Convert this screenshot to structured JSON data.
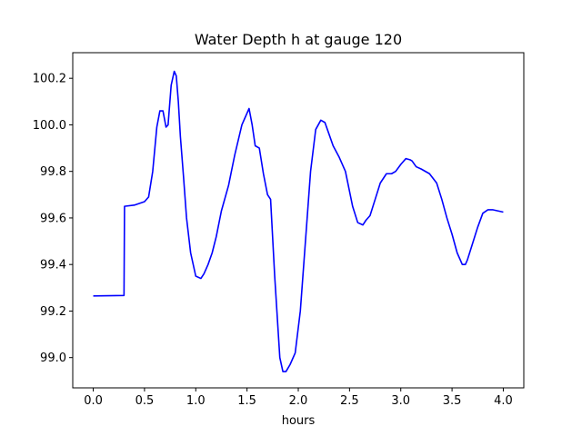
{
  "chart_data": {
    "type": "line",
    "title": "Water Depth h at gauge 120",
    "xlabel": "hours",
    "ylabel": "",
    "xlim": [
      -0.2,
      4.2
    ],
    "ylim": [
      98.87,
      100.31
    ],
    "grid": false,
    "xticks": [
      0.0,
      0.5,
      1.0,
      1.5,
      2.0,
      2.5,
      3.0,
      3.5,
      4.0
    ],
    "xtick_labels": [
      "0.0",
      "0.5",
      "1.0",
      "1.5",
      "2.0",
      "2.5",
      "3.0",
      "3.5",
      "4.0"
    ],
    "yticks": [
      99.0,
      99.2,
      99.4,
      99.6,
      99.8,
      100.0,
      100.2
    ],
    "ytick_labels": [
      "99.0",
      "99.2",
      "99.4",
      "99.6",
      "99.8",
      "100.0",
      "100.2"
    ],
    "series": [
      {
        "color": "#0000ff",
        "x": [
          0.0,
          0.3,
          0.305,
          0.4,
          0.5,
          0.54,
          0.58,
          0.62,
          0.65,
          0.68,
          0.71,
          0.73,
          0.76,
          0.79,
          0.81,
          0.83,
          0.85,
          0.88,
          0.91,
          0.95,
          1.0,
          1.05,
          1.08,
          1.12,
          1.16,
          1.2,
          1.25,
          1.32,
          1.38,
          1.45,
          1.48,
          1.52,
          1.55,
          1.58,
          1.62,
          1.66,
          1.7,
          1.73,
          1.77,
          1.82,
          1.85,
          1.88,
          1.92,
          1.97,
          2.02,
          2.07,
          2.12,
          2.17,
          2.22,
          2.26,
          2.3,
          2.34,
          2.4,
          2.46,
          2.53,
          2.58,
          2.63,
          2.66,
          2.7,
          2.75,
          2.8,
          2.86,
          2.91,
          2.95,
          3.0,
          3.05,
          3.09,
          3.11,
          3.15,
          3.2,
          3.28,
          3.35,
          3.4,
          3.45,
          3.5,
          3.55,
          3.6,
          3.63,
          3.65,
          3.7,
          3.75,
          3.8,
          3.85,
          3.9,
          3.95,
          4.0
        ],
        "y": [
          99.265,
          99.267,
          99.65,
          99.655,
          99.67,
          99.69,
          99.8,
          99.99,
          100.06,
          100.06,
          99.99,
          100.0,
          100.17,
          100.23,
          100.21,
          100.1,
          99.95,
          99.78,
          99.6,
          99.45,
          99.35,
          99.34,
          99.36,
          99.4,
          99.45,
          99.52,
          99.63,
          99.74,
          99.87,
          100.0,
          100.03,
          100.07,
          100.0,
          99.91,
          99.9,
          99.79,
          99.7,
          99.68,
          99.35,
          99.0,
          98.94,
          98.94,
          98.97,
          99.02,
          99.2,
          99.5,
          99.8,
          99.98,
          100.02,
          100.01,
          99.96,
          99.91,
          99.86,
          99.8,
          99.65,
          99.58,
          99.57,
          99.59,
          99.61,
          99.68,
          99.75,
          99.79,
          99.79,
          99.8,
          99.83,
          99.855,
          99.85,
          99.845,
          99.82,
          99.81,
          99.79,
          99.75,
          99.68,
          99.6,
          99.53,
          99.45,
          99.4,
          99.4,
          99.42,
          99.49,
          99.56,
          99.62,
          99.635,
          99.635,
          99.63,
          99.625
        ]
      }
    ]
  }
}
